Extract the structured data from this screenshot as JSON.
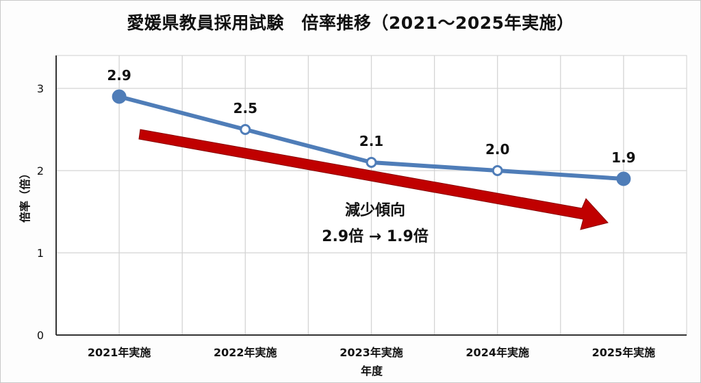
{
  "chart_data": {
    "type": "line",
    "title": "愛媛県教員採用試験　倍率推移（2021～2025年実施）",
    "xlabel": "年度",
    "ylabel": "倍率（倍）",
    "categories": [
      "2021年実施",
      "2022年実施",
      "2023年実施",
      "2024年実施",
      "2025年実施"
    ],
    "values": [
      2.9,
      2.5,
      2.1,
      2.0,
      1.9
    ],
    "data_labels": [
      "2.9",
      "2.5",
      "2.1",
      "2.0",
      "1.9"
    ],
    "yticks": [
      "0",
      "1",
      "2",
      "3"
    ],
    "ylim": [
      0,
      3.4
    ],
    "grid": true,
    "line_color": "#4f7db8",
    "annotation": {
      "type": "trend-arrow",
      "color": "#c00000",
      "lines": [
        "減少傾向",
        "2.9倍 → 1.9倍"
      ]
    }
  }
}
